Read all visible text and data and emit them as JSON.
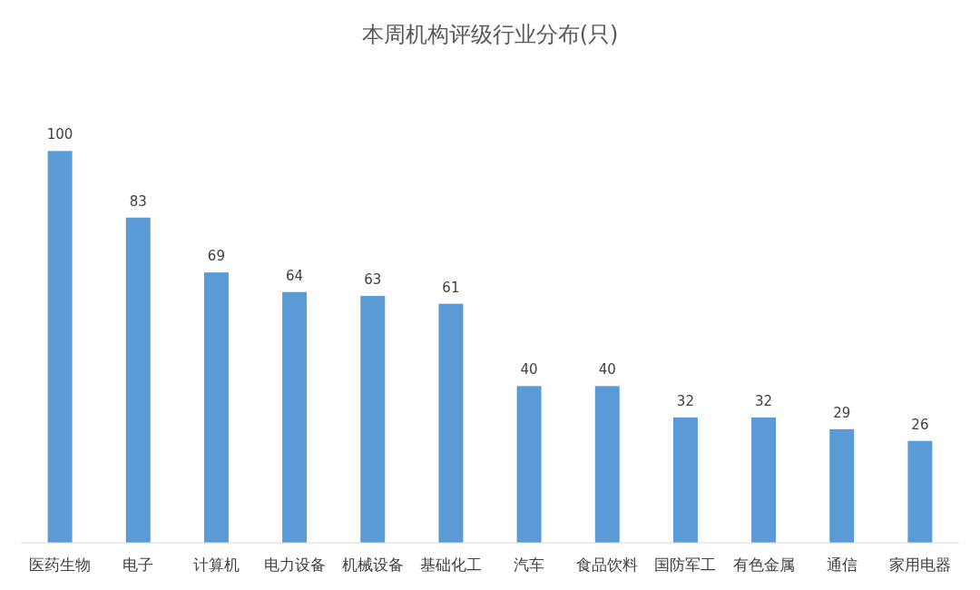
{
  "chart_data": {
    "type": "bar",
    "title": "本周机构评级行业分布(只)",
    "categories": [
      "医药生物",
      "电子",
      "计算机",
      "电力设备",
      "机械设备",
      "基础化工",
      "汽车",
      "食品饮料",
      "国防军工",
      "有色金属",
      "通信",
      "家用电器"
    ],
    "values": [
      100,
      83,
      69,
      64,
      63,
      61,
      40,
      40,
      32,
      32,
      29,
      26
    ],
    "color": "#5b9bd5",
    "data_labels": true
  }
}
